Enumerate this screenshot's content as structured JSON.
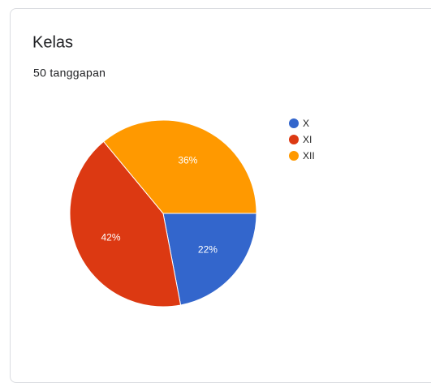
{
  "chart_data": {
    "type": "pie",
    "title": "Kelas",
    "subtitle": "50 tanggapan",
    "categories": [
      "X",
      "XI",
      "XII"
    ],
    "values": [
      22,
      42,
      36
    ],
    "value_labels": [
      "22%",
      "42%",
      "36%"
    ],
    "colors": [
      "#3366cc",
      "#dc3912",
      "#ff9900"
    ],
    "legend": "right"
  }
}
